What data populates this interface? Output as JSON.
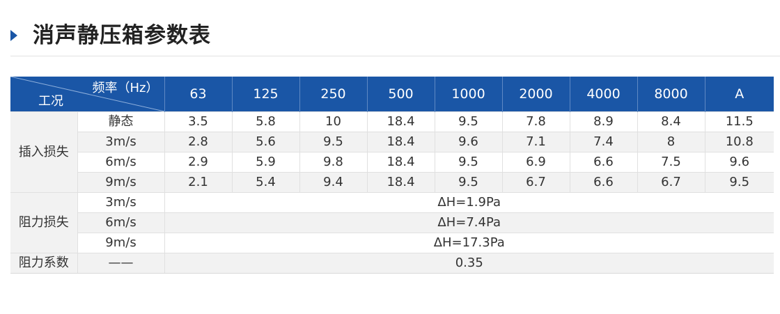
{
  "page_title": "消声静压箱参数表",
  "header": {
    "freq_label": "频率（Hz）",
    "condition_label": "工况",
    "columns": [
      "63",
      "125",
      "250",
      "500",
      "1000",
      "2000",
      "4000",
      "8000",
      "A"
    ]
  },
  "insertion_loss": {
    "group_label": "插入损失",
    "rows": [
      {
        "condition": "静态",
        "values": [
          "3.5",
          "5.8",
          "10",
          "18.4",
          "9.5",
          "7.8",
          "8.9",
          "8.4",
          "11.5"
        ]
      },
      {
        "condition": "3m/s",
        "values": [
          "2.8",
          "5.6",
          "9.5",
          "18.4",
          "9.6",
          "7.1",
          "7.4",
          "8",
          "10.8"
        ]
      },
      {
        "condition": "6m/s",
        "values": [
          "2.9",
          "5.9",
          "9.8",
          "18.4",
          "9.5",
          "6.9",
          "6.6",
          "7.5",
          "9.6"
        ]
      },
      {
        "condition": "9m/s",
        "values": [
          "2.1",
          "5.4",
          "9.4",
          "18.4",
          "9.5",
          "6.7",
          "6.6",
          "6.7",
          "9.5"
        ]
      }
    ]
  },
  "resistance_loss": {
    "group_label": "阻力损失",
    "rows": [
      {
        "condition": "3m/s",
        "value": "ΔH=1.9Pa"
      },
      {
        "condition": "6m/s",
        "value": "ΔH=7.4Pa"
      },
      {
        "condition": "9m/s",
        "value": "ΔH=17.3Pa"
      }
    ]
  },
  "resistance_coefficient": {
    "group_label": "阻力系数",
    "condition": "——",
    "value": "0.35"
  }
}
